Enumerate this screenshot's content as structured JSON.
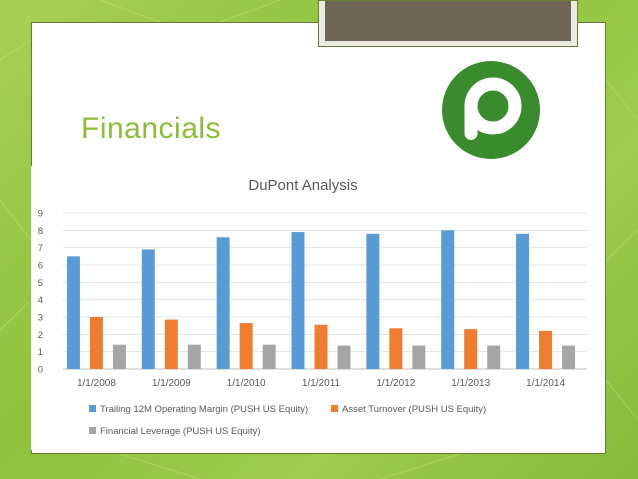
{
  "slide": {
    "heading": "Financials",
    "logo_icon": "publix-p-logo",
    "accent_color": "#8dbb3a",
    "logo_color": "#3a8a2e"
  },
  "chart_data": {
    "type": "bar",
    "title": "DuPont Analysis",
    "xlabel": "",
    "ylabel": "",
    "ylim": [
      0,
      9
    ],
    "yticks": [
      0,
      1,
      2,
      3,
      4,
      5,
      6,
      7,
      8,
      9
    ],
    "grid": true,
    "legend_position": "bottom",
    "categories": [
      "1/1/2008",
      "1/1/2009",
      "1/1/2010",
      "1/1/2011",
      "1/1/2012",
      "1/1/2013",
      "1/1/2014"
    ],
    "series": [
      {
        "name": "Trailing 12M Operating Margin  (PUSH US Equity)",
        "color": "#5b9bd5",
        "values": [
          6.5,
          6.9,
          7.6,
          7.9,
          7.8,
          8.0,
          7.8
        ]
      },
      {
        "name": "Asset Turnover  (PUSH US Equity)",
        "color": "#ed7d31",
        "values": [
          3.0,
          2.85,
          2.65,
          2.55,
          2.35,
          2.3,
          2.2
        ]
      },
      {
        "name": "Financial Leverage  (PUSH US Equity)",
        "color": "#a5a5a5",
        "values": [
          1.4,
          1.4,
          1.4,
          1.35,
          1.35,
          1.35,
          1.35
        ]
      }
    ]
  }
}
